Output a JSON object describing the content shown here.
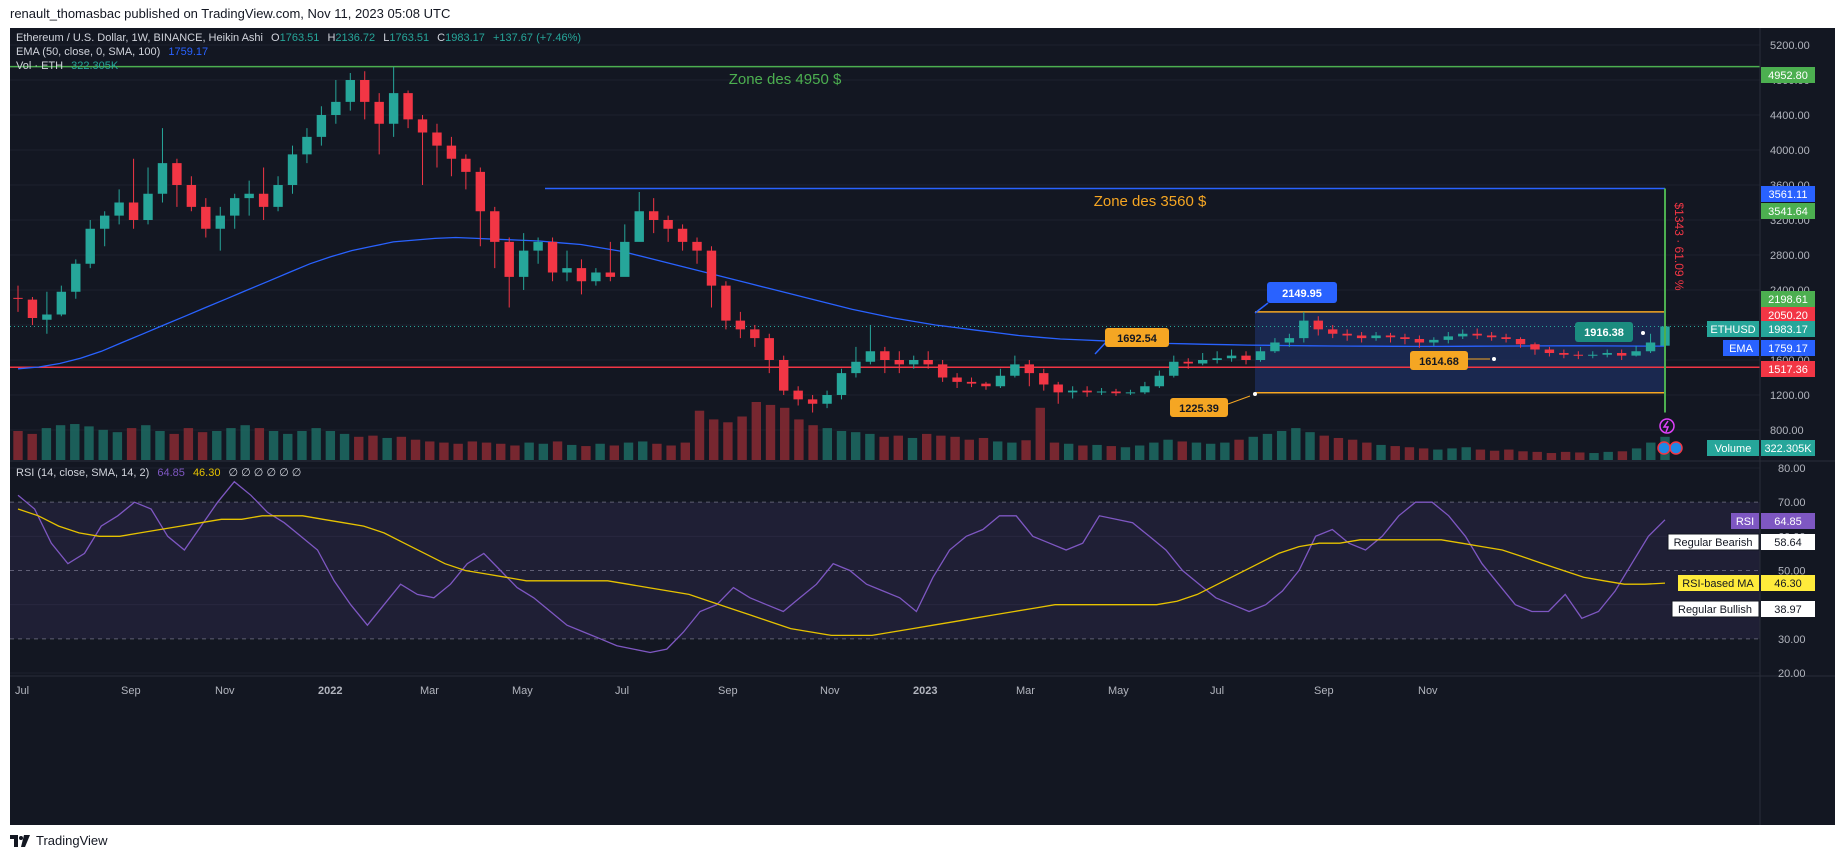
{
  "header": {
    "published": "renault_thomasbac published on TradingView.com, Nov 11, 2023 05:08 UTC"
  },
  "footer": {
    "brand": "TradingView",
    "logo_icon": "tradingview-logo-icon"
  },
  "colors": {
    "background": "#131722",
    "up": "#26a69a",
    "down": "#f23645",
    "ema": "#2962ff",
    "rsi": "#7e57c2",
    "rsi_ma": "#e6c200",
    "zone_green": "#4caf50",
    "zone_blue": "#2962ff",
    "support_red": "#f23645",
    "range_orange": "#f5a623",
    "range_fill": "#1c2b57"
  },
  "legend": {
    "line1_prefix": "Ethereum / U.S. Dollar, 1W, BINANCE, Heikin Ashi",
    "o_label": "O",
    "o_value": "1763.51",
    "h_label": "H",
    "h_value": "2136.72",
    "l_label": "L",
    "l_value": "1763.51",
    "c_label": "C",
    "c_value": "1983.17",
    "change": "+137.67 (+7.46%)",
    "line2_label": "EMA (50, close, 0, SMA, 100)",
    "line2_value": "1759.17",
    "line3_label": "Vol · ETH",
    "line3_value": "322.305K"
  },
  "rsi_legend": {
    "label": "RSI (14, close, SMA, 14, 2)",
    "value1": "64.85",
    "value2": "46.30",
    "empties": "∅ ∅ ∅ ∅ ∅ ∅"
  },
  "chart_data": {
    "type": "candlestick",
    "price_axis": {
      "min": 800,
      "max": 5200,
      "ticks": [
        "5200.00",
        "4800.00",
        "4400.00",
        "4000.00",
        "3600.00",
        "3200.00",
        "2800.00",
        "2400.00",
        "2000.00",
        "1600.00",
        "1200.00",
        "800.00"
      ]
    },
    "time_axis": [
      "Jul",
      "Sep",
      "Nov",
      "2022",
      "Mar",
      "May",
      "Jul",
      "Sep",
      "Nov",
      "2023",
      "Mar",
      "May",
      "Jul",
      "Sep",
      "Nov"
    ],
    "candles": [
      [
        2310,
        2300,
        2450,
        2150
      ],
      [
        2290,
        2080,
        2320,
        2000
      ],
      [
        2060,
        2120,
        2380,
        1900
      ],
      [
        2120,
        2380,
        2450,
        2100
      ],
      [
        2380,
        2700,
        2750,
        2300
      ],
      [
        2700,
        3100,
        3200,
        2650
      ],
      [
        3100,
        3250,
        3300,
        2900
      ],
      [
        3250,
        3400,
        3550,
        3150
      ],
      [
        3400,
        3200,
        3900,
        3100
      ],
      [
        3200,
        3500,
        3800,
        3150
      ],
      [
        3500,
        3850,
        4250,
        3400
      ],
      [
        3850,
        3600,
        3900,
        3350
      ],
      [
        3600,
        3350,
        3700,
        3300
      ],
      [
        3350,
        3100,
        3450,
        3000
      ],
      [
        3100,
        3250,
        3350,
        2850
      ],
      [
        3250,
        3450,
        3500,
        3100
      ],
      [
        3450,
        3500,
        3650,
        3250
      ],
      [
        3500,
        3350,
        3800,
        3200
      ],
      [
        3350,
        3600,
        3700,
        3300
      ],
      [
        3600,
        3950,
        4050,
        3500
      ],
      [
        3950,
        4150,
        4250,
        3850
      ],
      [
        4150,
        4400,
        4500,
        4050
      ],
      [
        4400,
        4550,
        4800,
        4300
      ],
      [
        4550,
        4800,
        4880,
        4450
      ],
      [
        4800,
        4550,
        4900,
        4350
      ],
      [
        4550,
        4300,
        4650,
        3950
      ],
      [
        4300,
        4650,
        4950,
        4150
      ],
      [
        4650,
        4350,
        4680,
        4250
      ],
      [
        4350,
        4200,
        4400,
        3600
      ],
      [
        4200,
        4050,
        4300,
        3800
      ],
      [
        4050,
        3900,
        4150,
        3700
      ],
      [
        3900,
        3750,
        3950,
        3550
      ],
      [
        3750,
        3300,
        3800,
        2900
      ],
      [
        3300,
        2950,
        3350,
        2650
      ],
      [
        2950,
        2550,
        3000,
        2200
      ],
      [
        2550,
        2850,
        3050,
        2400
      ],
      [
        2850,
        2950,
        3000,
        2700
      ],
      [
        2950,
        2600,
        3000,
        2500
      ],
      [
        2600,
        2650,
        2850,
        2500
      ],
      [
        2650,
        2500,
        2750,
        2350
      ],
      [
        2500,
        2600,
        2650,
        2450
      ],
      [
        2600,
        2550,
        2950,
        2500
      ],
      [
        2550,
        2950,
        3150,
        2850
      ],
      [
        2950,
        3300,
        3520,
        3100
      ],
      [
        3300,
        3200,
        3450,
        3050
      ],
      [
        3200,
        3100,
        3250,
        2950
      ],
      [
        3100,
        2950,
        3150,
        2850
      ],
      [
        2950,
        2850,
        3000,
        2700
      ],
      [
        2850,
        2450,
        2900,
        2200
      ],
      [
        2450,
        2050,
        2500,
        1950
      ],
      [
        2050,
        1950,
        2150,
        1850
      ],
      [
        1950,
        1850,
        2000,
        1750
      ],
      [
        1850,
        1600,
        1900,
        1450
      ],
      [
        1600,
        1250,
        1650,
        1200
      ],
      [
        1250,
        1150,
        1300,
        1080
      ],
      [
        1150,
        1100,
        1200,
        1000
      ],
      [
        1100,
        1200,
        1250,
        1050
      ],
      [
        1200,
        1450,
        1500,
        1150
      ],
      [
        1450,
        1580,
        1750,
        1400
      ],
      [
        1580,
        1700,
        2000,
        1550
      ],
      [
        1700,
        1600,
        1750,
        1450
      ],
      [
        1600,
        1550,
        1700,
        1450
      ],
      [
        1550,
        1600,
        1650,
        1500
      ],
      [
        1600,
        1550,
        1700,
        1500
      ],
      [
        1550,
        1400,
        1600,
        1350
      ],
      [
        1400,
        1350,
        1450,
        1280
      ],
      [
        1350,
        1330,
        1400,
        1290
      ],
      [
        1330,
        1300,
        1350,
        1260
      ],
      [
        1300,
        1420,
        1500,
        1280
      ],
      [
        1420,
        1550,
        1650,
        1400
      ],
      [
        1550,
        1450,
        1600,
        1300
      ],
      [
        1450,
        1320,
        1500,
        1250
      ],
      [
        1320,
        1230,
        1350,
        1100
      ],
      [
        1230,
        1250,
        1300,
        1160
      ],
      [
        1250,
        1230,
        1300,
        1180
      ],
      [
        1230,
        1240,
        1280,
        1200
      ],
      [
        1240,
        1220,
        1270,
        1190
      ],
      [
        1220,
        1230,
        1260,
        1200
      ],
      [
        1230,
        1300,
        1350,
        1210
      ],
      [
        1300,
        1420,
        1480,
        1280
      ],
      [
        1420,
        1580,
        1650,
        1400
      ],
      [
        1580,
        1560,
        1620,
        1500
      ],
      [
        1560,
        1600,
        1680,
        1540
      ],
      [
        1600,
        1620,
        1700,
        1560
      ],
      [
        1620,
        1650,
        1720,
        1580
      ],
      [
        1650,
        1600,
        1700,
        1550
      ],
      [
        1600,
        1700,
        1750,
        1580
      ],
      [
        1700,
        1800,
        1850,
        1680
      ],
      [
        1800,
        1850,
        1900,
        1750
      ],
      [
        1850,
        2050,
        2150,
        1800
      ],
      [
        2050,
        1950,
        2100,
        1880
      ],
      [
        1950,
        1900,
        2000,
        1850
      ],
      [
        1900,
        1880,
        1950,
        1820
      ],
      [
        1880,
        1850,
        1920,
        1800
      ],
      [
        1850,
        1880,
        1920,
        1820
      ],
      [
        1880,
        1860,
        1910,
        1800
      ],
      [
        1860,
        1840,
        1900,
        1780
      ],
      [
        1840,
        1800,
        1880,
        1740
      ],
      [
        1800,
        1830,
        1860,
        1760
      ],
      [
        1830,
        1870,
        1920,
        1790
      ],
      [
        1870,
        1900,
        1950,
        1840
      ],
      [
        1900,
        1880,
        1960,
        1840
      ],
      [
        1880,
        1860,
        1920,
        1820
      ],
      [
        1860,
        1840,
        1900,
        1800
      ],
      [
        1840,
        1780,
        1860,
        1740
      ],
      [
        1780,
        1720,
        1800,
        1660
      ],
      [
        1720,
        1680,
        1750,
        1640
      ],
      [
        1680,
        1660,
        1720,
        1620
      ],
      [
        1660,
        1650,
        1700,
        1610
      ],
      [
        1650,
        1660,
        1700,
        1620
      ],
      [
        1660,
        1680,
        1720,
        1630
      ],
      [
        1680,
        1650,
        1720,
        1600
      ],
      [
        1650,
        1700,
        1760,
        1640
      ],
      [
        1700,
        1800,
        1900,
        1680
      ],
      [
        1763.51,
        1983.17,
        2136.72,
        1763.51
      ]
    ],
    "ema_values": [
      1500,
      1520,
      1560,
      1620,
      1700,
      1800,
      1900,
      2000,
      2100,
      2200,
      2300,
      2400,
      2500,
      2600,
      2700,
      2780,
      2850,
      2900,
      2950,
      2970,
      2990,
      3000,
      2990,
      2980,
      2970,
      2960,
      2940,
      2920,
      2880,
      2840,
      2780,
      2720,
      2660,
      2600,
      2540,
      2480,
      2420,
      2360,
      2300,
      2240,
      2180,
      2130,
      2080,
      2040,
      2000,
      1970,
      1940,
      1910,
      1880,
      1860,
      1840,
      1830,
      1820,
      1810,
      1800,
      1790,
      1785,
      1780,
      1775,
      1770,
      1768,
      1765,
      1762,
      1760,
      1759,
      1758,
      1757,
      1756,
      1756,
      1757,
      1758,
      1759,
      1760,
      1761,
      1762,
      1762,
      1761,
      1760,
      1759,
      1759
    ],
    "volume_values": [
      0.5,
      0.45,
      0.55,
      0.6,
      0.62,
      0.58,
      0.52,
      0.48,
      0.55,
      0.6,
      0.5,
      0.45,
      0.55,
      0.48,
      0.5,
      0.55,
      0.6,
      0.55,
      0.5,
      0.45,
      0.5,
      0.55,
      0.5,
      0.45,
      0.4,
      0.42,
      0.38,
      0.4,
      0.35,
      0.32,
      0.3,
      0.28,
      0.32,
      0.3,
      0.28,
      0.25,
      0.3,
      0.28,
      0.32,
      0.26,
      0.24,
      0.28,
      0.25,
      0.3,
      0.32,
      0.28,
      0.25,
      0.3,
      0.85,
      0.7,
      0.65,
      0.75,
      1.0,
      0.95,
      0.9,
      0.7,
      0.6,
      0.55,
      0.5,
      0.48,
      0.45,
      0.4,
      0.42,
      0.38,
      0.45,
      0.42,
      0.4,
      0.35,
      0.38,
      0.32,
      0.3,
      0.34,
      0.9,
      0.3,
      0.28,
      0.25,
      0.26,
      0.24,
      0.22,
      0.25,
      0.3,
      0.35,
      0.32,
      0.3,
      0.28,
      0.3,
      0.35,
      0.4,
      0.45,
      0.5,
      0.55,
      0.48,
      0.42,
      0.38,
      0.35,
      0.3,
      0.26,
      0.24,
      0.22,
      0.2,
      0.18,
      0.2,
      0.22,
      0.18,
      0.16,
      0.18,
      0.15,
      0.14,
      0.12,
      0.14,
      0.13,
      0.12,
      0.14,
      0.15,
      0.2,
      0.3,
      0.4
    ],
    "rsi_axis": {
      "min": 20,
      "max": 80,
      "ticks": [
        "80.00",
        "70.00",
        "60.00",
        "50.00",
        "40.00",
        "30.00",
        "20.00"
      ]
    },
    "rsi_values": [
      72,
      68,
      58,
      52,
      55,
      63,
      66,
      70,
      68,
      60,
      56,
      63,
      70,
      76,
      72,
      67,
      64,
      60,
      56,
      47,
      40,
      34,
      40,
      46,
      43,
      42,
      46,
      52,
      55,
      50,
      45,
      42,
      38,
      34,
      32,
      30,
      28,
      27,
      26,
      27,
      32,
      38,
      40,
      45,
      42,
      40,
      38,
      42,
      46,
      52,
      50,
      46,
      44,
      42,
      38,
      48,
      56,
      60,
      62,
      66,
      66,
      60,
      58,
      56,
      58,
      66,
      65,
      64,
      60,
      56,
      50,
      46,
      42,
      40,
      38,
      40,
      44,
      50,
      60,
      62,
      58,
      56,
      60,
      66,
      70,
      70,
      66,
      60,
      52,
      46,
      40,
      38,
      38,
      43,
      36,
      38,
      44,
      52,
      60,
      64.85
    ],
    "rsi_ma_values": [
      68,
      66,
      63,
      61,
      60,
      60,
      61,
      62,
      63,
      64,
      65,
      65,
      66,
      66,
      66,
      65,
      64,
      63,
      61,
      58,
      55,
      52,
      50,
      49,
      48,
      47,
      47,
      47,
      47,
      47,
      46,
      45,
      44,
      43,
      41,
      39,
      37,
      35,
      33,
      32,
      31,
      31,
      31,
      32,
      33,
      34,
      35,
      36,
      37,
      38,
      39,
      40,
      40,
      40,
      40,
      40,
      40,
      41,
      43,
      46,
      49,
      52,
      55,
      57,
      58,
      58,
      59,
      59,
      59,
      59,
      59,
      58,
      57,
      56,
      54,
      52,
      50,
      48,
      47,
      46,
      46,
      46.3
    ]
  },
  "levels": {
    "zone_4950_label": "Zone des 4950 $",
    "zone_3560_label": "Zone des 3560 $",
    "measure_label": "$1343 · 61.09 %",
    "tag_2149": "2149.95",
    "tag_1692": "1692.54",
    "tag_1916": "1916.38",
    "tag_1614": "1614.68",
    "tag_1225": "1225.39"
  },
  "axis_tags": {
    "t4952": "4952.80",
    "t3561": "3561.11",
    "t3541": "3541.64",
    "t2198": "2198.61",
    "t2050": "2050.20",
    "ethusd_label": "ETHUSD",
    "ethusd_value": "1983.17",
    "ema_label": "EMA",
    "ema_value": "1759.17",
    "t1517": "1517.36",
    "volume_label": "Volume",
    "volume_value": "322.305K",
    "rsi_label": "RSI",
    "rsi_value": "64.85",
    "bearish_label": "Regular Bearish",
    "bearish_value": "58.64",
    "rsima_label": "RSI-based MA",
    "rsima_value": "46.30",
    "bullish_label": "Regular Bullish",
    "bullish_value": "38.97"
  }
}
